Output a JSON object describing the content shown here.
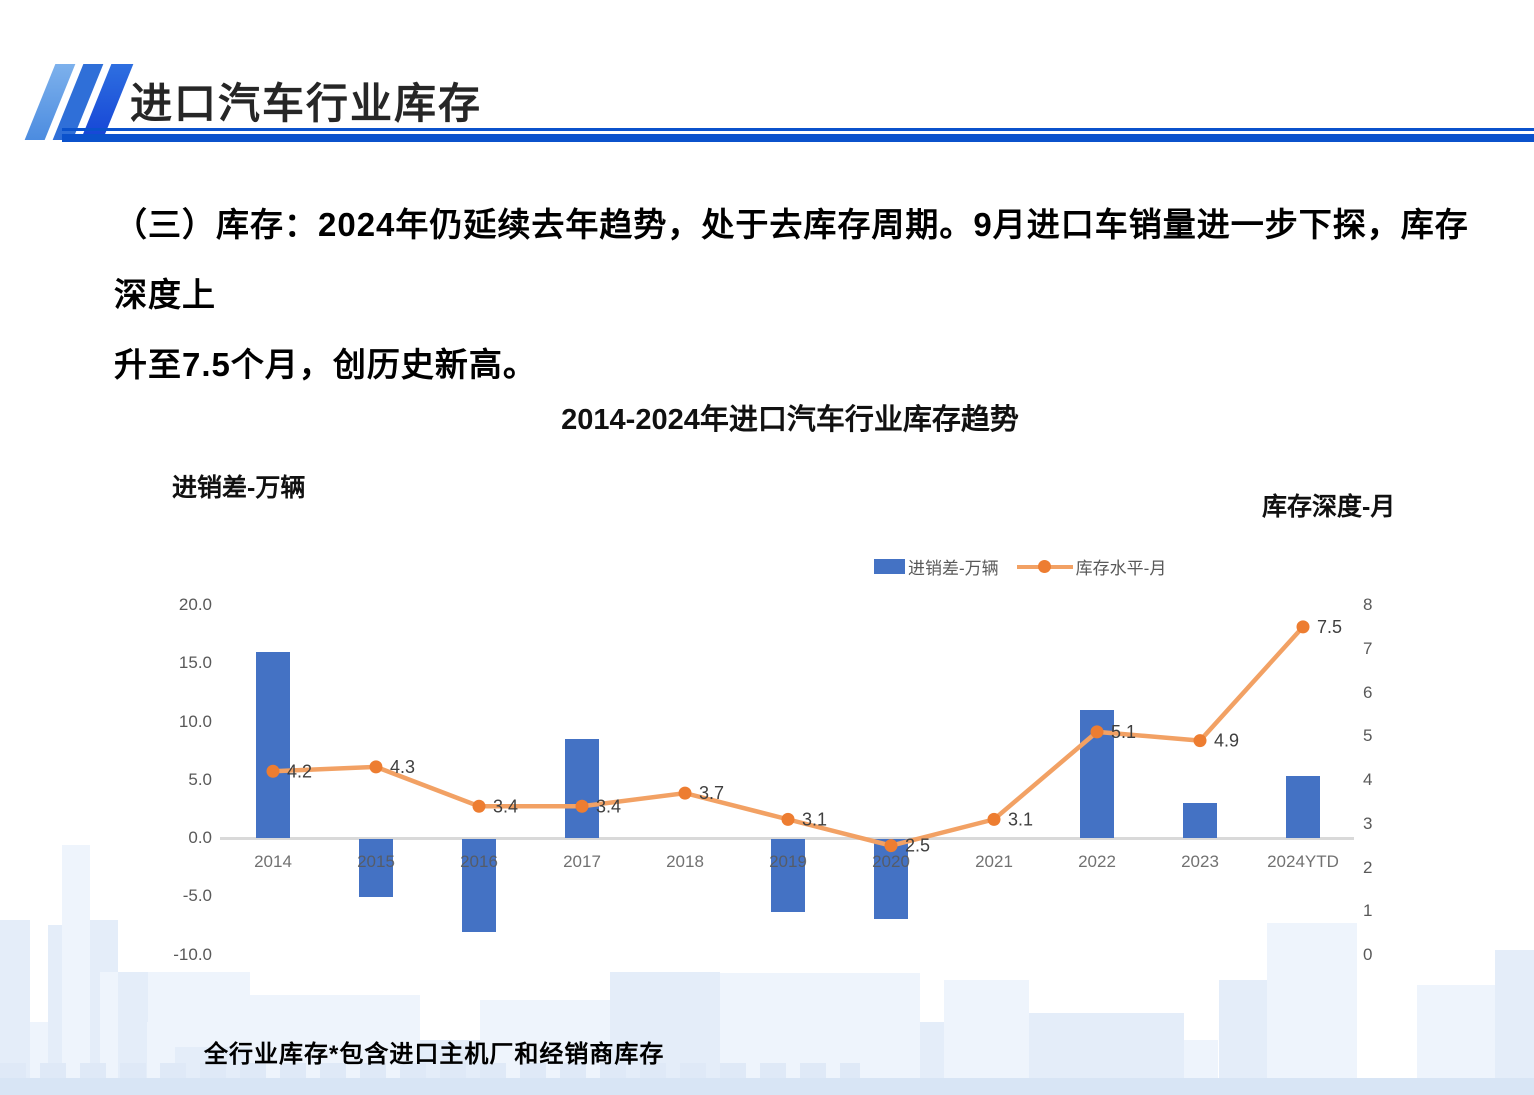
{
  "header": {
    "title": "进口汽车行业库存"
  },
  "intro": {
    "line1": "（三）库存：2024年仍延续去年趋势，处于去库存周期。9月进口车销量进一步下探，库存深度上",
    "line2": "升至7.5个月，创历史新高。"
  },
  "chart": {
    "title": "2014-2024年进口汽车行业库存趋势",
    "left_axis_label": "进销差-万辆",
    "right_axis_label": "库存深度-月",
    "legend": [
      {
        "label": "进销差-万辆",
        "type": "bar"
      },
      {
        "label": "库存水平-月",
        "type": "line"
      }
    ],
    "footnote": "全行业库存*包含进口主机厂和经销商库存"
  },
  "chart_data": {
    "type": "bar",
    "subtype": "combo-bar-line-dual-axis",
    "title": "2014-2024年进口汽车行业库存趋势",
    "categories": [
      "2014",
      "2015",
      "2016",
      "2017",
      "2018",
      "2019",
      "2020",
      "2021",
      "2022",
      "2023",
      "2024YTD"
    ],
    "series": [
      {
        "name": "进销差-万辆",
        "type": "bar",
        "axis": "left",
        "values": [
          16.0,
          -5.0,
          -8.0,
          8.5,
          0.0,
          -6.3,
          -6.9,
          0.0,
          11.0,
          3.0,
          5.3
        ]
      },
      {
        "name": "库存水平-月",
        "type": "line",
        "axis": "right",
        "values": [
          4.2,
          4.3,
          3.4,
          3.4,
          3.7,
          3.1,
          2.5,
          3.1,
          5.1,
          4.9,
          7.5
        ],
        "data_labels": [
          "4.2",
          "4.3",
          "3.4",
          "3.4",
          "3.7",
          "3.1",
          "2.5",
          "3.1",
          "5.1",
          "4.9",
          "7.5"
        ]
      }
    ],
    "left_axis": {
      "label": "进销差-万辆",
      "min": -10,
      "max": 20,
      "step": 5,
      "tick_format": "0.0"
    },
    "right_axis": {
      "label": "库存深度-月",
      "min": 0,
      "max": 8,
      "step": 1,
      "tick_format": "0"
    },
    "grid": false,
    "legend_position": "top-right",
    "colors": {
      "bar": "#4472C4",
      "line": "#F2A164",
      "marker": "#ED7D31",
      "tick_text": "#595959",
      "label_text": "#3f3f3f"
    }
  }
}
